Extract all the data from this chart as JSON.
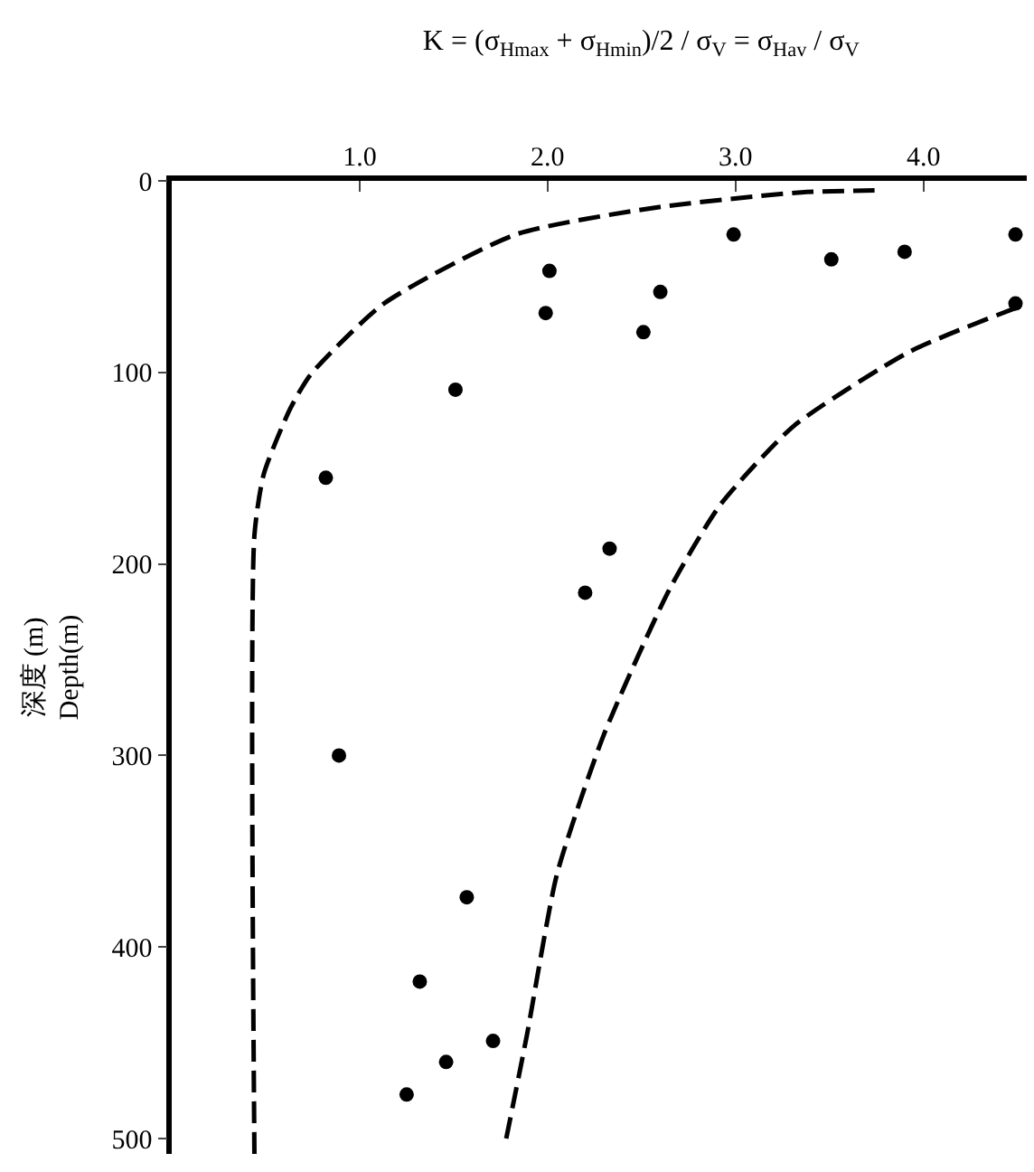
{
  "chart_data": {
    "type": "scatter",
    "title": "K = (σ$_{Hmax}$ + σ$_{Hmin}$)/2 / σ$_{V}$ = σ$_{Hav}$ / σ$_{V}$",
    "ylabel": "深度 (m)\nDepth(m)",
    "xlim": [
      0,
      4.55
    ],
    "xticks": [
      {
        "value": 1,
        "label": "1.0"
      },
      {
        "value": 2,
        "label": "2.0"
      },
      {
        "value": 3,
        "label": "3.0"
      },
      {
        "value": 4,
        "label": "4.0"
      }
    ],
    "ylim": [
      508,
      0
    ],
    "yticks": [
      0,
      100,
      200,
      300,
      400,
      500
    ],
    "series": [
      {
        "marker": "circle",
        "color": "#000000",
        "x": [
          2.99,
          3.51,
          3.9,
          2.01,
          2.6,
          1.99,
          2.51,
          4.49,
          4.49,
          1.51,
          0.82,
          2.33,
          2.2,
          0.89,
          1.57,
          1.32,
          1.71,
          1.46,
          1.25
        ],
        "values": [
          28,
          41,
          37,
          47,
          58,
          69,
          79,
          64,
          28,
          109,
          155,
          192,
          215,
          300,
          374,
          418,
          449,
          460,
          477
        ]
      },
      {
        "type": "line",
        "marker": "none",
        "line_style": "dashed",
        "color": "#000000",
        "x": [
          0.44,
          0.44,
          0.49,
          0.63,
          0.74,
          1.13,
          1.83,
          2.57,
          3.35,
          3.74
        ],
        "values": [
          508,
          185,
          153,
          119,
          101,
          64,
          28,
          14,
          6,
          5
        ]
      },
      {
        "type": "line",
        "marker": "none",
        "line_style": "dashed",
        "color": "#000000",
        "x": [
          1.78,
          1.89,
          2.05,
          2.3,
          2.65,
          2.92,
          3.31,
          3.93,
          4.5
        ],
        "values": [
          500,
          446,
          362,
          289,
          213,
          169,
          128,
          89,
          66
        ]
      }
    ]
  }
}
